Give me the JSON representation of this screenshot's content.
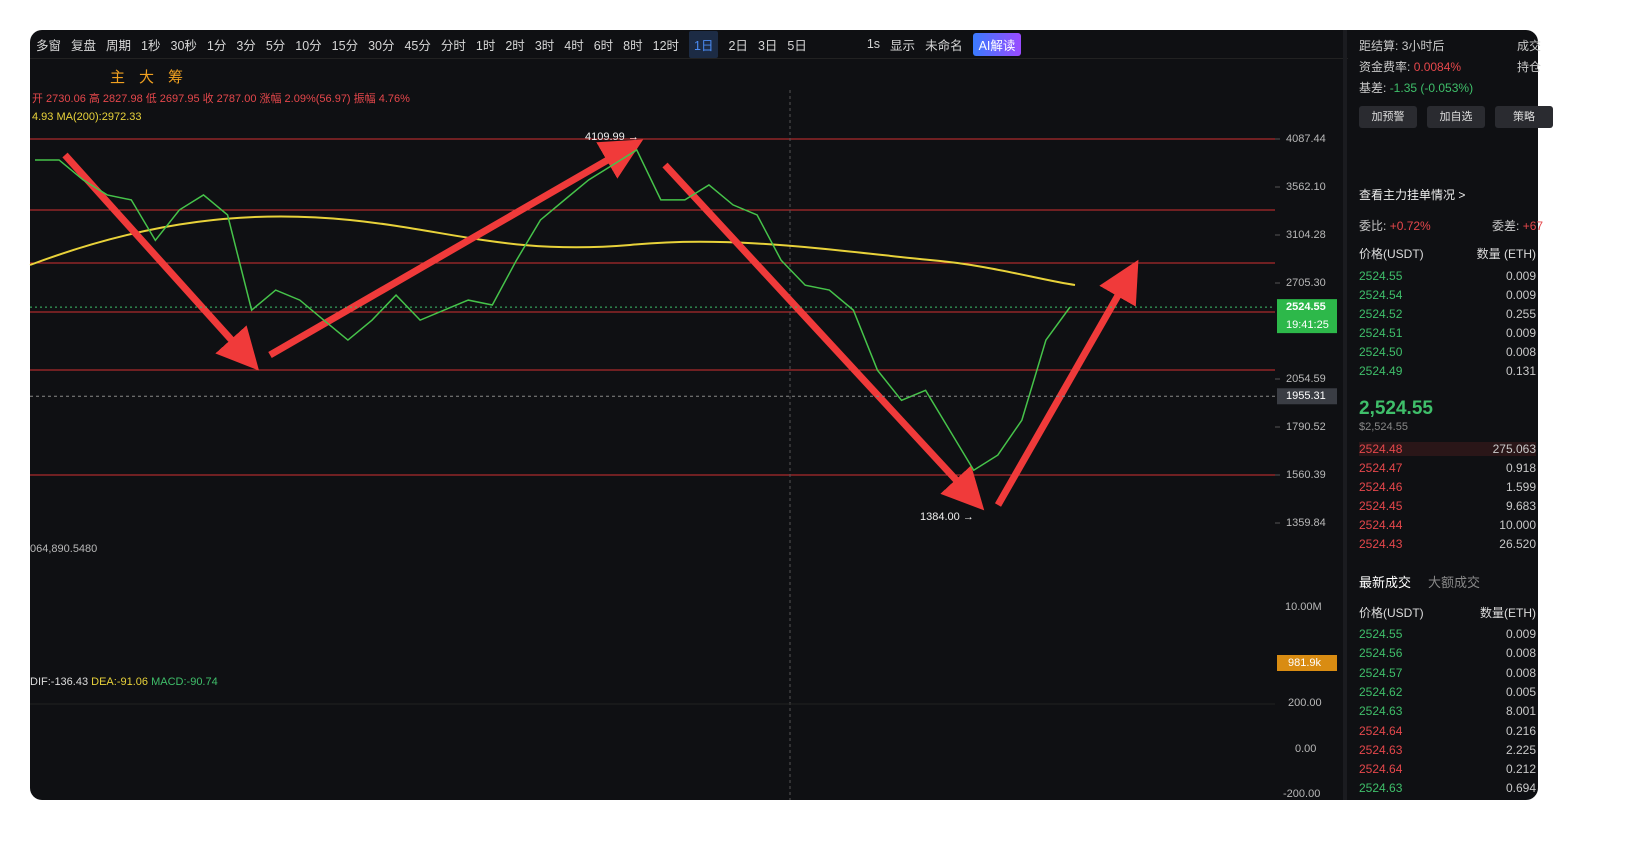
{
  "toolbar": {
    "left": [
      "多窗",
      "复盘",
      "周期"
    ],
    "intervals": [
      "1秒",
      "30秒",
      "1分",
      "3分",
      "5分",
      "10分",
      "15分",
      "30分",
      "45分",
      "分时",
      "1时",
      "2时",
      "3时",
      "4时",
      "6时",
      "8时",
      "12时",
      "1日",
      "2日",
      "3日",
      "5日"
    ],
    "active_interval": "1日",
    "right": [
      "1s",
      "显示",
      "未命名",
      "AI解读"
    ],
    "indicators": [
      "主",
      "大",
      "筹"
    ]
  },
  "chart": {
    "ohlc": "开 2730.06 高 2827.98 低 2697.95 收 2787.00 涨幅 2.09%(56.97) 振幅 4.76%",
    "ma_prefix": "4.93",
    "ma": "MA(200):2972.33",
    "price_ticks": [
      4087.44,
      3562.1,
      3104.28,
      2705.3,
      2054.59,
      1790.52,
      1560.39,
      1359.84
    ],
    "price_tick_labels": [
      "4087.44",
      "3562.10",
      "3104.28",
      "2705.30",
      "2054.59",
      "1790.52",
      "1560.39",
      "1359.84"
    ],
    "log_scale": true,
    "closes": [
      3849,
      3849,
      3635,
      3482,
      3433,
      3057,
      3336,
      3482,
      3288,
      2503,
      2651,
      2576,
      2432,
      2297,
      2432,
      2613,
      2432,
      2503,
      2576,
      2540,
      2887,
      3241,
      3433,
      3635,
      3794,
      3961,
      3433,
      3433,
      3583,
      3384,
      3288,
      2887,
      2688,
      2651,
      2503,
      2107,
      1933,
      1989,
      1774,
      1582,
      1652,
      1826,
      2297,
      2524.55
    ],
    "line_color": "#46c34a",
    "high_label": "4109.99 →",
    "low_label": "1384.00 →",
    "last_price": 2524.55,
    "last_price_label": "2524.55",
    "countdown": "19:41:25",
    "cursor_price": 1955.31,
    "cursor_label": "1955.31",
    "volume_header": "064,890.5480",
    "volume_ticks": [
      "10.00M"
    ],
    "volume_last": "981.9k",
    "macd_header": [
      "DIF:-136.43",
      "DEA:-91.06",
      "MACD:-90.74"
    ],
    "macd_ticks": [
      "200.00",
      "0.00",
      "-200.00"
    ]
  },
  "sidebar": {
    "settle_label": "距结算:",
    "settle_value": "3小时后",
    "settle_right": "成交",
    "funding_label": "资金费率:",
    "funding_value": "0.0084%",
    "funding_right": "持仓",
    "basis_label": "基差:",
    "basis_value": "-1.35 (-0.053%)",
    "buttons": [
      "加预警",
      "加自选",
      "策略"
    ],
    "main_orders": "查看主力挂单情况 >",
    "ratio_label": "委比:",
    "ratio_value": "+0.72%",
    "diff_label": "委差:",
    "diff_value": "+67",
    "book_headers": [
      "价格(USDT)",
      "数量 (ETH)"
    ],
    "asks": [
      [
        "2524.55",
        "0.009"
      ],
      [
        "2524.54",
        "0.009"
      ],
      [
        "2524.52",
        "0.255"
      ],
      [
        "2524.51",
        "0.009"
      ],
      [
        "2524.50",
        "0.008"
      ],
      [
        "2524.49",
        "0.131"
      ]
    ],
    "mid_price": "2,524.55",
    "mid_usd": "$2,524.55",
    "bids": [
      [
        "2524.48",
        "275.063"
      ],
      [
        "2524.47",
        "0.918"
      ],
      [
        "2524.46",
        "1.599"
      ],
      [
        "2524.45",
        "9.683"
      ],
      [
        "2524.44",
        "10.000"
      ],
      [
        "2524.43",
        "26.520"
      ]
    ],
    "ask_color": "#3fbf6a",
    "bid_color": "#e5474b",
    "tabs": [
      "最新成交",
      "大额成交"
    ],
    "trade_headers": [
      "价格(USDT)",
      "数量(ETH)"
    ],
    "trades": [
      {
        "price": "2524.55",
        "qty": "0.009",
        "color": "#3fbf6a"
      },
      {
        "price": "2524.56",
        "qty": "0.008",
        "color": "#3fbf6a"
      },
      {
        "price": "2524.57",
        "qty": "0.008",
        "color": "#3fbf6a"
      },
      {
        "price": "2524.62",
        "qty": "0.005",
        "color": "#3fbf6a"
      },
      {
        "price": "2524.63",
        "qty": "8.001",
        "color": "#3fbf6a"
      },
      {
        "price": "2524.64",
        "qty": "0.216",
        "color": "#e5474b"
      },
      {
        "price": "2524.63",
        "qty": "2.225",
        "color": "#e5474b"
      },
      {
        "price": "2524.64",
        "qty": "0.212",
        "color": "#e5474b"
      },
      {
        "price": "2524.63",
        "qty": "0.694",
        "color": "#3fbf6a"
      }
    ]
  }
}
